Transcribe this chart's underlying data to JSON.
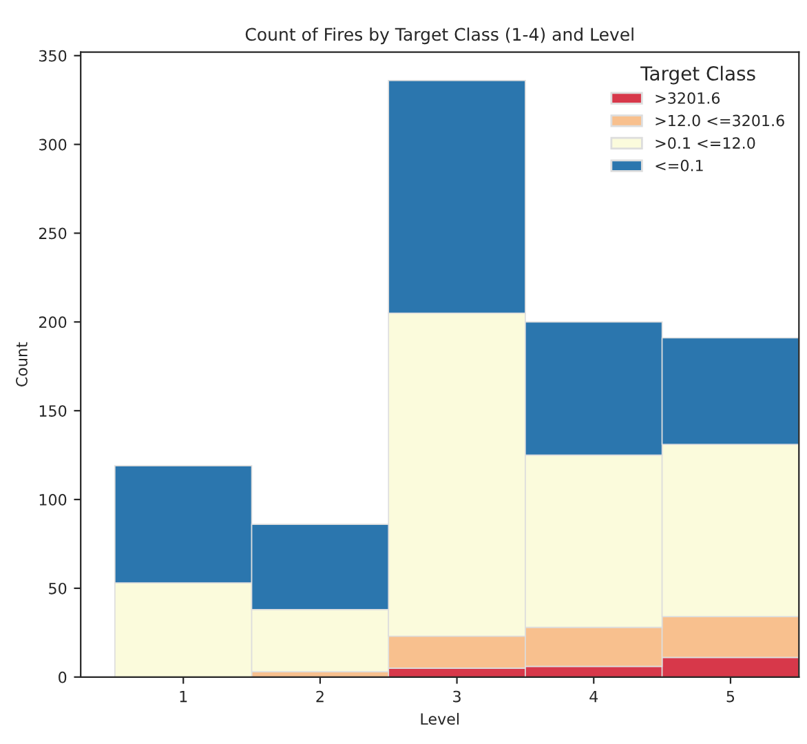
{
  "chart_data": {
    "type": "bar",
    "stacked": true,
    "title": "Count of Fires by Target Class (1-4) and Level",
    "xlabel": "Level",
    "ylabel": "Count",
    "legend_title": "Target Class",
    "legend": "top right",
    "grid": false,
    "categories": [
      "1",
      "2",
      "3",
      "4",
      "5"
    ],
    "series": [
      {
        "name": ">3201.6",
        "color": "#d7384a",
        "values": [
          null,
          null,
          5,
          6,
          11
        ]
      },
      {
        "name": ">12.0 <=3201.6",
        "color": "#f8c08e",
        "values": [
          0,
          3,
          18,
          22,
          23
        ]
      },
      {
        "name": ">0.1 <=12.0",
        "color": "#fbfbdc",
        "values": [
          53,
          35,
          182,
          97,
          97
        ]
      },
      {
        "name": "<=0.1",
        "color": "#2b76ae",
        "values": [
          66,
          48,
          131,
          75,
          60
        ]
      }
    ],
    "ylim": [
      0,
      352
    ],
    "yticks": [
      0,
      50,
      100,
      150,
      200,
      250,
      300,
      350
    ]
  }
}
